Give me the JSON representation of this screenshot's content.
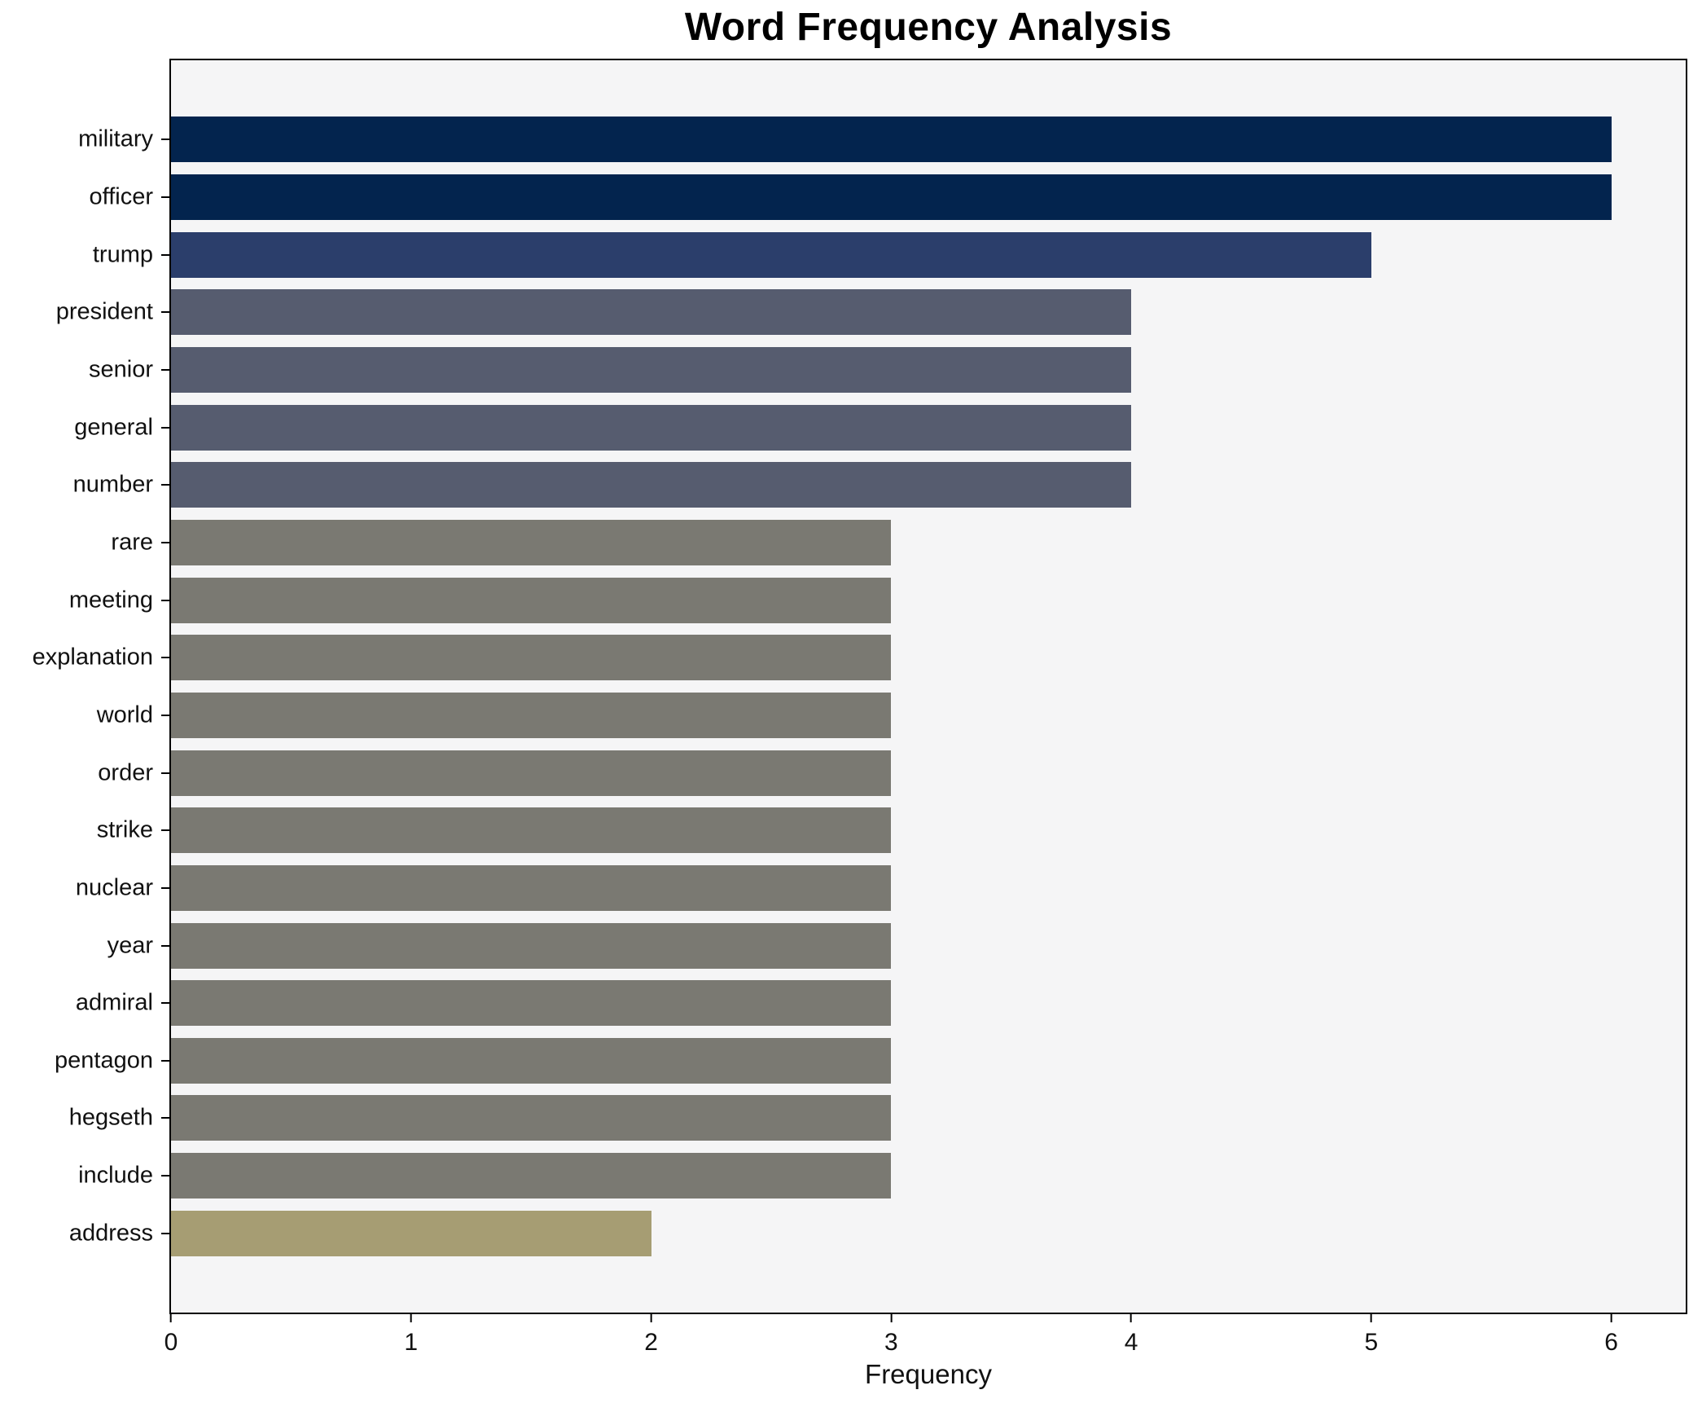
{
  "chart_data": {
    "type": "bar",
    "orientation": "horizontal",
    "title": "Word Frequency Analysis",
    "xlabel": "Frequency",
    "ylabel": "",
    "categories": [
      "military",
      "officer",
      "trump",
      "president",
      "senior",
      "general",
      "number",
      "rare",
      "meeting",
      "explanation",
      "world",
      "order",
      "strike",
      "nuclear",
      "year",
      "admiral",
      "pentagon",
      "hegseth",
      "include",
      "address"
    ],
    "values": [
      6,
      6,
      5,
      4,
      4,
      4,
      4,
      3,
      3,
      3,
      3,
      3,
      3,
      3,
      3,
      3,
      3,
      3,
      3,
      2
    ],
    "bar_colors": [
      "#03244e",
      "#03244e",
      "#2b3e6b",
      "#565c6f",
      "#565c6f",
      "#565c6f",
      "#565c6f",
      "#7a7972",
      "#7a7972",
      "#7a7972",
      "#7a7972",
      "#7a7972",
      "#7a7972",
      "#7a7972",
      "#7a7972",
      "#7a7972",
      "#7a7972",
      "#7a7972",
      "#7a7972",
      "#a69d73"
    ],
    "xticks": [
      0,
      1,
      2,
      3,
      4,
      5,
      6
    ],
    "xlim": [
      0,
      6.31
    ],
    "grid": false,
    "legend": null,
    "plot_background": "#f5f5f6",
    "figure_background": "#ffffff",
    "spine_color": "#000000"
  }
}
